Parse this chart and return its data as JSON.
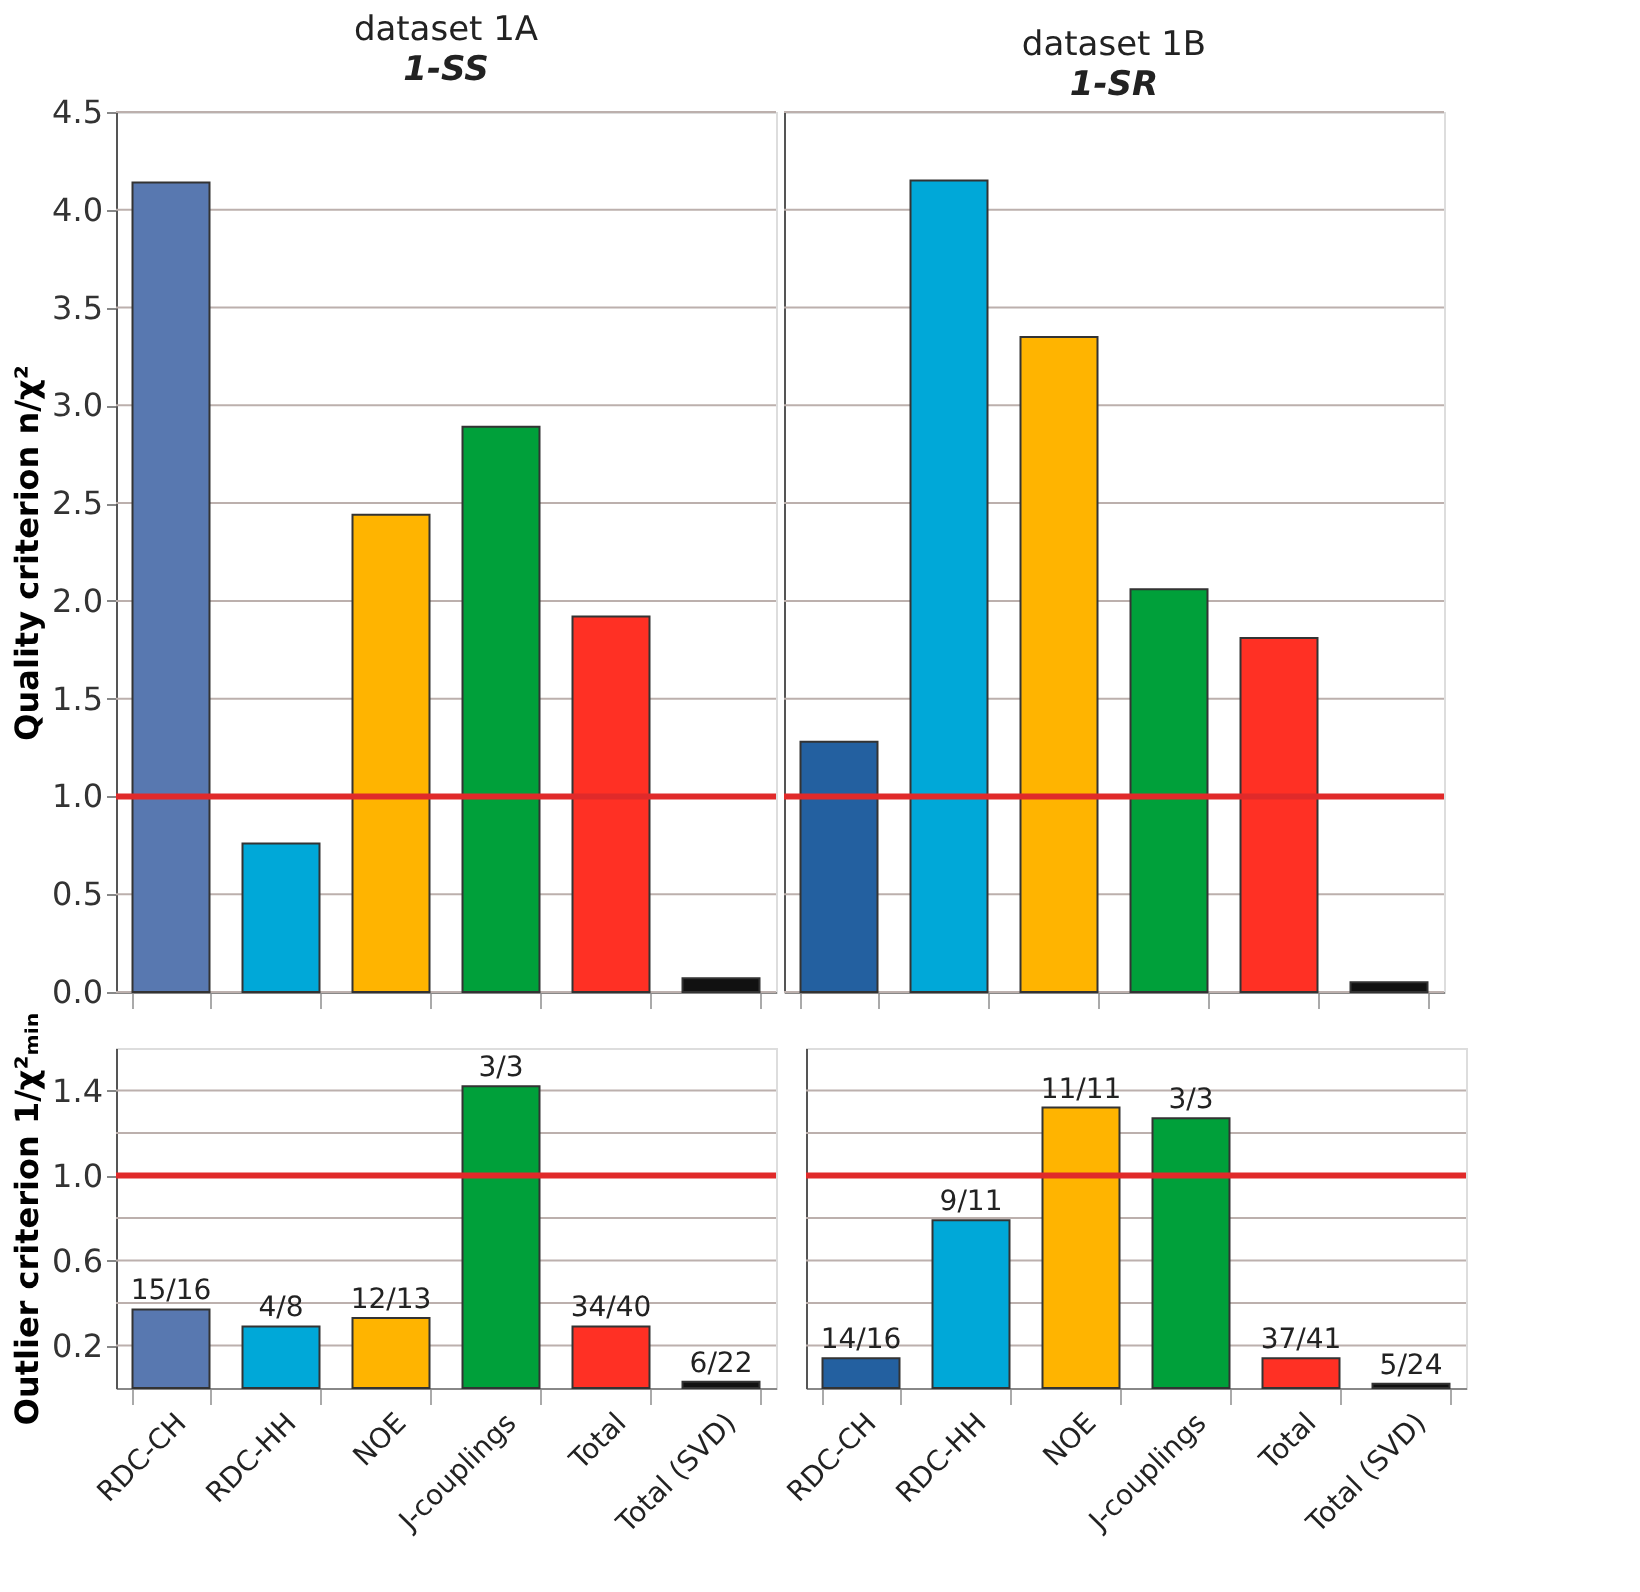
{
  "chart_data": [
    {
      "type": "bar",
      "title": "dataset 1A",
      "subtitle": "1-SS",
      "ylabel": "Quality criterion n/χ²",
      "categories": [
        "RDC-CH",
        "RDC-HH",
        "NOE",
        "J-couplings",
        "Total",
        "Total (SVD)"
      ],
      "values": [
        4.14,
        0.76,
        2.44,
        2.89,
        1.92,
        0.07
      ],
      "colors": [
        "#5878b0",
        "#00a8d8",
        "#ffb400",
        "#00a03a",
        "#ff3024",
        "#111111"
      ],
      "ylim": [
        0.0,
        4.5
      ],
      "yticks": [
        {
          "value": 0,
          "label": "0.0"
        },
        0.5,
        {
          "value": 1,
          "label": "1.0"
        },
        1.5,
        {
          "value": 2,
          "label": "2.0"
        },
        2.5,
        {
          "value": 3,
          "label": "3.0"
        },
        3.5,
        {
          "value": 4,
          "label": "4.0"
        },
        4.5
      ],
      "grid": "y",
      "tick_labels": "y",
      "ref_lines": [
        {
          "axis": "y",
          "value": 1.0,
          "color": "#e02a2a"
        }
      ]
    },
    {
      "type": "bar",
      "title": "dataset 1B",
      "subtitle": "1-SR",
      "categories": [
        "RDC-CH",
        "RDC-HH",
        "NOE",
        "J-couplings",
        "Total",
        "Total (SVD)"
      ],
      "values": [
        1.28,
        4.15,
        3.35,
        2.06,
        1.81,
        0.05
      ],
      "colors": [
        "#2360a0",
        "#00a8d8",
        "#ffb400",
        "#00a03a",
        "#ff3024",
        "#111111"
      ],
      "ylim": [
        0.0,
        4.5
      ],
      "yticks": [
        {
          "value": 0,
          "label": "0.0"
        },
        0.5,
        {
          "value": 1,
          "label": "1.0"
        },
        1.5,
        {
          "value": 2,
          "label": "2.0"
        },
        2.5,
        {
          "value": 3,
          "label": "3.0"
        },
        3.5,
        {
          "value": 4,
          "label": "4.0"
        },
        4.5
      ],
      "grid": "y",
      "tick_labels": false,
      "ref_lines": [
        {
          "axis": "y",
          "value": 1.0,
          "color": "#e02a2a"
        }
      ]
    },
    {
      "type": "bar",
      "ylabel": "Outlier criterion 1/χ²ₘᵢₙ",
      "categories": [
        "RDC-CH",
        "RDC-HH",
        "NOE",
        "J-couplings",
        "Total",
        "Total (SVD)"
      ],
      "values": [
        0.37,
        0.29,
        0.33,
        1.42,
        0.29,
        0.03
      ],
      "colors": [
        "#5878b0",
        "#00a8d8",
        "#ffb400",
        "#00a03a",
        "#ff3024",
        "#111111"
      ],
      "ylim": [
        0.0,
        1.6
      ],
      "yticks": [
        0.2,
        {
          "value": 0.4,
          "label": null
        },
        0.6,
        {
          "value": 0.8,
          "label": null
        },
        {
          "value": 1,
          "label": "1.0"
        },
        {
          "value": 1.2,
          "label": null
        },
        1.4
      ],
      "grid": "y",
      "ref_lines": [
        {
          "axis": "y",
          "value": 1.0,
          "color": "#e02a2a"
        }
      ],
      "annotations": [
        {
          "text": "15/16",
          "x": "RDC-CH",
          "y": 0.37
        },
        {
          "text": "4/8",
          "x": "RDC-HH",
          "y": 0.29
        },
        {
          "text": "12/13",
          "x": "NOE",
          "y": 0.33
        },
        {
          "text": "3/3",
          "x": "J-couplings",
          "y": 1.42
        },
        {
          "text": "34/40",
          "x": "Total",
          "y": 0.29
        },
        {
          "text": "6/22",
          "x": "Total (SVD)",
          "y": 0.03
        }
      ]
    },
    {
      "type": "bar",
      "categories": [
        "RDC-CH",
        "RDC-HH",
        "NOE",
        "J-couplings",
        "Total",
        "Total (SVD)"
      ],
      "values": [
        0.14,
        0.79,
        1.32,
        1.27,
        0.14,
        0.02
      ],
      "colors": [
        "#2360a0",
        "#00a8d8",
        "#ffb400",
        "#00a03a",
        "#ff3024",
        "#111111"
      ],
      "ylim": [
        0.0,
        1.6
      ],
      "yticks": [
        0.2,
        {
          "value": 0.4,
          "label": null
        },
        0.6,
        {
          "value": 0.8,
          "label": null
        },
        {
          "value": 1,
          "label": "1.0"
        },
        {
          "value": 1.2,
          "label": null
        },
        1.4
      ],
      "grid": "y",
      "tick_labels": "x",
      "ref_lines": [
        {
          "axis": "y",
          "value": 1.0,
          "color": "#e02a2a"
        }
      ],
      "annotations": [
        {
          "text": "14/16",
          "x": "RDC-CH",
          "y": 0.14
        },
        {
          "text": "9/11",
          "x": "RDC-HH",
          "y": 0.79
        },
        {
          "text": "11/11",
          "x": "NOE",
          "y": 1.32
        },
        {
          "text": "3/3",
          "x": "J-couplings",
          "y": 1.27
        },
        {
          "text": "37/41",
          "x": "Total",
          "y": 0.14
        },
        {
          "text": "5/24",
          "x": "Total (SVD)",
          "y": 0.02
        }
      ]
    }
  ]
}
